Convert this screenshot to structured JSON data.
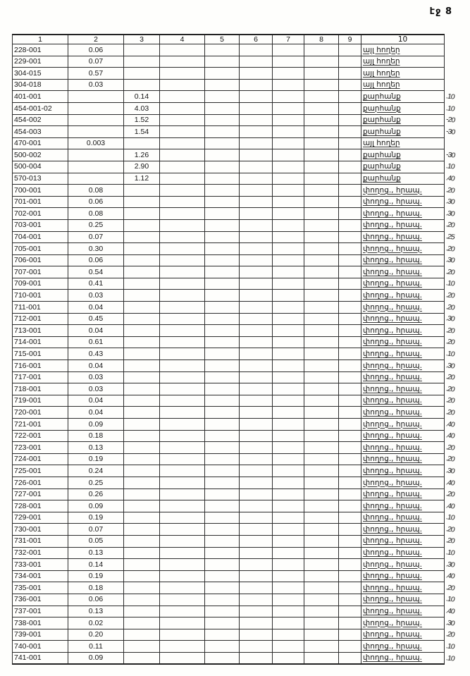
{
  "page_label": "էջ 8",
  "table": {
    "headers": [
      "1",
      "2",
      "3",
      "4",
      "5",
      "6",
      "7",
      "8",
      "9",
      "10"
    ],
    "rows": [
      {
        "c1": "228-001",
        "c2": "0.06",
        "c3": "",
        "c10": "այլ հողեր",
        "mark": ""
      },
      {
        "c1": "229-001",
        "c2": "0.07",
        "c3": "",
        "c10": "այլ հողեր",
        "mark": ""
      },
      {
        "c1": "304-015",
        "c2": "0.57",
        "c3": "",
        "c10": "այլ հողեր",
        "mark": ""
      },
      {
        "c1": "304-018",
        "c2": "0.03",
        "c3": "",
        "c10": "այլ հողեր",
        "mark": ""
      },
      {
        "c1": "401-001",
        "c2": "",
        "c3": "0.14",
        "c10": "քարհանք",
        "mark": ".10"
      },
      {
        "c1": "454-001-02",
        "c2": "",
        "c3": "4.03",
        "c10": "քարհանք",
        "mark": ".10"
      },
      {
        "c1": "454-002",
        "c2": "",
        "c3": "1.52",
        "c10": "քարհանք",
        "mark": "-20"
      },
      {
        "c1": "454-003",
        "c2": "",
        "c3": "1.54",
        "c10": "քարհանք",
        "mark": "-30"
      },
      {
        "c1": "470-001",
        "c2": "0.003",
        "c3": "",
        "c10": "այլ հողեր",
        "mark": ""
      },
      {
        "c1": "500-002",
        "c2": "",
        "c3": "1.26",
        "c10": "քարհանք",
        "mark": "-30"
      },
      {
        "c1": "500-004",
        "c2": "",
        "c3": "2.90",
        "c10": "քարհանք",
        "mark": ".10"
      },
      {
        "c1": "570-013",
        "c2": "",
        "c3": "1.12",
        "c10": "քարհանք",
        "mark": ".40"
      },
      {
        "c1": "700-001",
        "c2": "0.08",
        "c3": "",
        "c10": "փողոց., հրապ.",
        "mark": ".20"
      },
      {
        "c1": "701-001",
        "c2": "0.06",
        "c3": "",
        "c10": "փողոց., հրապ.",
        "mark": ".30"
      },
      {
        "c1": "702-001",
        "c2": "0.08",
        "c3": "",
        "c10": "փողոց., հրապ.",
        "mark": ".30"
      },
      {
        "c1": "703-001",
        "c2": "0.25",
        "c3": "",
        "c10": "փողոց., հրապ.",
        "mark": ".20"
      },
      {
        "c1": "704-001",
        "c2": "0.07",
        "c3": "",
        "c10": "փողոց., հրապ.",
        "mark": ".25"
      },
      {
        "c1": "705-001",
        "c2": "0.30",
        "c3": "",
        "c10": "փողոց., հրապ.",
        "mark": ".20"
      },
      {
        "c1": "706-001",
        "c2": "0.06",
        "c3": "",
        "c10": "փողոց., հրապ.",
        "mark": ".30"
      },
      {
        "c1": "707-001",
        "c2": "0.54",
        "c3": "",
        "c10": "փողոց., հրապ.",
        "mark": ".20"
      },
      {
        "c1": "709-001",
        "c2": "0.41",
        "c3": "",
        "c10": "փողոց., հրապ.",
        "mark": ".10"
      },
      {
        "c1": "710-001",
        "c2": "0.03",
        "c3": "",
        "c10": "փողոց., հրապ.",
        "mark": ".20"
      },
      {
        "c1": "711-001",
        "c2": "0.04",
        "c3": "",
        "c10": "փողոց., հրապ.",
        "mark": ".20"
      },
      {
        "c1": "712-001",
        "c2": "0.45",
        "c3": "",
        "c10": "փողոց., հրապ.",
        "mark": ".30"
      },
      {
        "c1": "713-001",
        "c2": "0.04",
        "c3": "",
        "c10": "փողոց., հրապ.",
        "mark": ".20"
      },
      {
        "c1": "714-001",
        "c2": "0.61",
        "c3": "",
        "c10": "փողոց., հրապ.",
        "mark": ".20"
      },
      {
        "c1": "715-001",
        "c2": "0.43",
        "c3": "",
        "c10": "փողոց., հրապ.",
        "mark": ".10"
      },
      {
        "c1": "716-001",
        "c2": "0.04",
        "c3": "",
        "c10": "փողոց., հրապ.",
        "mark": ".30"
      },
      {
        "c1": "717-001",
        "c2": "0.03",
        "c3": "",
        "c10": "փողոց., հրապ.",
        "mark": ".20"
      },
      {
        "c1": "718-001",
        "c2": "0.03",
        "c3": "",
        "c10": "փողոց., հրապ.",
        "mark": ".20"
      },
      {
        "c1": "719-001",
        "c2": "0.04",
        "c3": "",
        "c10": "փողոց., հրապ.",
        "mark": ".20"
      },
      {
        "c1": "720-001",
        "c2": "0.04",
        "c3": "",
        "c10": "փողոց., հրապ.",
        "mark": ".20"
      },
      {
        "c1": "721-001",
        "c2": "0.09",
        "c3": "",
        "c10": "փողոց., հրապ.",
        "mark": ".40"
      },
      {
        "c1": "722-001",
        "c2": "0.18",
        "c3": "",
        "c10": "փողոց., հրապ.",
        "mark": ".40"
      },
      {
        "c1": "723-001",
        "c2": "0.13",
        "c3": "",
        "c10": "փողոց., հրապ.",
        "mark": ".20"
      },
      {
        "c1": "724-001",
        "c2": "0.19",
        "c3": "",
        "c10": "փողոց., հրապ.",
        "mark": ".20"
      },
      {
        "c1": "725-001",
        "c2": "0.24",
        "c3": "",
        "c10": "փողոց., հրապ.",
        "mark": ".30"
      },
      {
        "c1": "726-001",
        "c2": "0.25",
        "c3": "",
        "c10": "փողոց., հրապ.",
        "mark": ".40"
      },
      {
        "c1": "727-001",
        "c2": "0.26",
        "c3": "",
        "c10": "փողոց., հրապ.",
        "mark": ".20"
      },
      {
        "c1": "728-001",
        "c2": "0.09",
        "c3": "",
        "c10": "փողոց., հրապ.",
        "mark": ".40"
      },
      {
        "c1": "729-001",
        "c2": "0.19",
        "c3": "",
        "c10": "փողոց., հրապ.",
        "mark": ".10"
      },
      {
        "c1": "730-001",
        "c2": "0.07",
        "c3": "",
        "c10": "փողոց., հրապ.",
        "mark": ".20"
      },
      {
        "c1": "731-001",
        "c2": "0.05",
        "c3": "",
        "c10": "փողոց., հրապ.",
        "mark": ".20"
      },
      {
        "c1": "732-001",
        "c2": "0.13",
        "c3": "",
        "c10": "փողոց., հրապ.",
        "mark": ".10"
      },
      {
        "c1": "733-001",
        "c2": "0.14",
        "c3": "",
        "c10": "փողոց., հրապ.",
        "mark": ".30"
      },
      {
        "c1": "734-001",
        "c2": "0.19",
        "c3": "",
        "c10": "փողոց., հրապ.",
        "mark": ".40"
      },
      {
        "c1": "735-001",
        "c2": "0.18",
        "c3": "",
        "c10": "փողոց., հրապ.",
        "mark": ".20"
      },
      {
        "c1": "736-001",
        "c2": "0.06",
        "c3": "",
        "c10": "փողոց., հրապ.",
        "mark": ".10"
      },
      {
        "c1": "737-001",
        "c2": "0.13",
        "c3": "",
        "c10": "փողոց., հրապ.",
        "mark": ".40"
      },
      {
        "c1": "738-001",
        "c2": "0.02",
        "c3": "",
        "c10": "փողոց., հրապ.",
        "mark": ".30"
      },
      {
        "c1": "739-001",
        "c2": "0.20",
        "c3": "",
        "c10": "փողոց., հրապ.",
        "mark": ".20"
      },
      {
        "c1": "740-001",
        "c2": "0.11",
        "c3": "",
        "c10": "փողոց., հրապ.",
        "mark": ".10"
      },
      {
        "c1": "741-001",
        "c2": "0.09",
        "c3": "",
        "c10": "փողոց., հրապ.",
        "mark": ".10"
      }
    ]
  }
}
